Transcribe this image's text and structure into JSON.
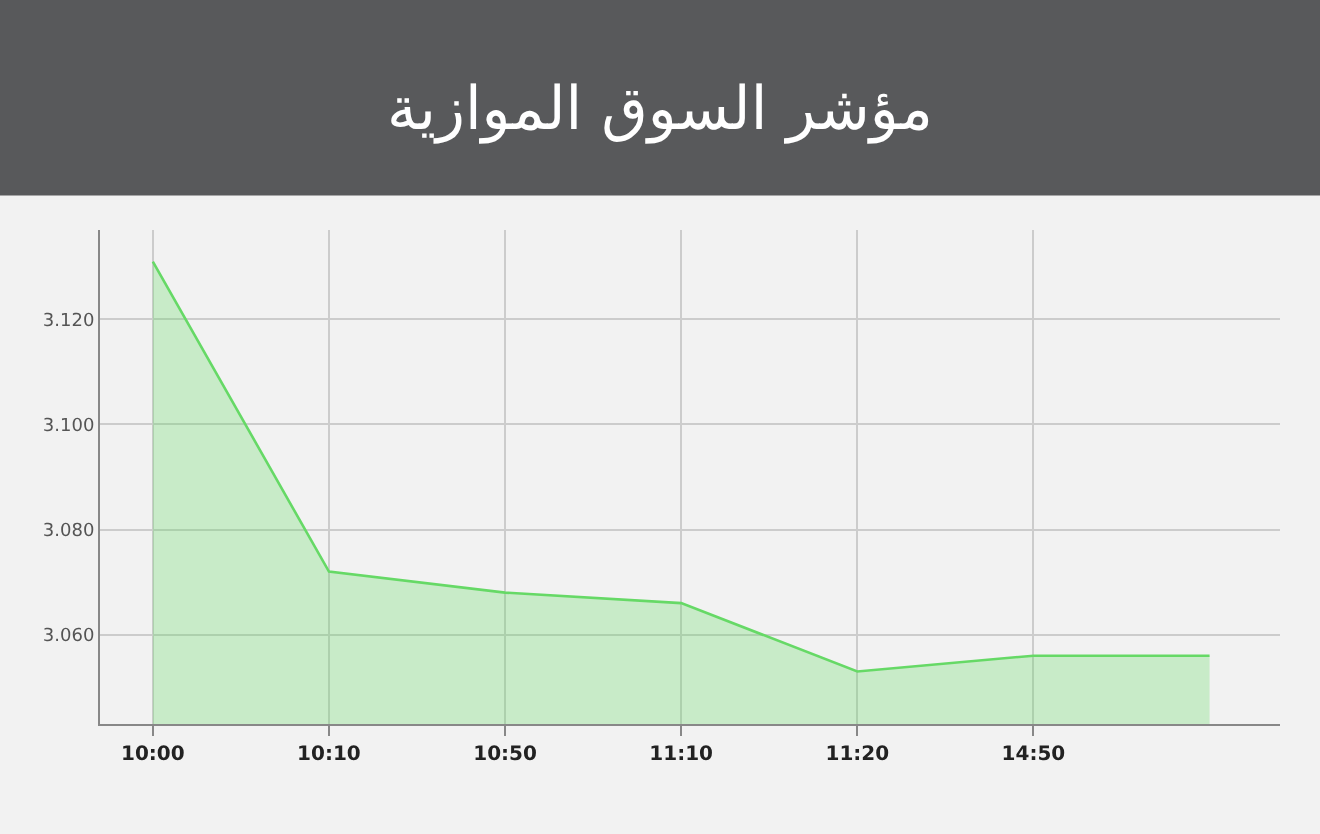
{
  "chart_data": {
    "type": "area",
    "title": "مؤشر السوق الموازية",
    "categories": [
      "10:00",
      "10:10",
      "10:50",
      "11:10",
      "11:20",
      "14:50",
      null
    ],
    "series": [
      {
        "color": "#66d966",
        "values": [
          3.131,
          3.072,
          3.068,
          3.066,
          3.053,
          3.056,
          3.056
        ]
      }
    ],
    "ylim": [
      3.043,
      3.137
    ],
    "yticks": [
      {
        "value": 3.06,
        "label": "3.060"
      },
      {
        "value": 3.08,
        "label": "3.080"
      },
      {
        "value": 3.1,
        "label": "3.100"
      },
      {
        "value": 3.12,
        "label": "3.120"
      }
    ],
    "grid": true,
    "marker": "none",
    "line_style": "solid"
  }
}
